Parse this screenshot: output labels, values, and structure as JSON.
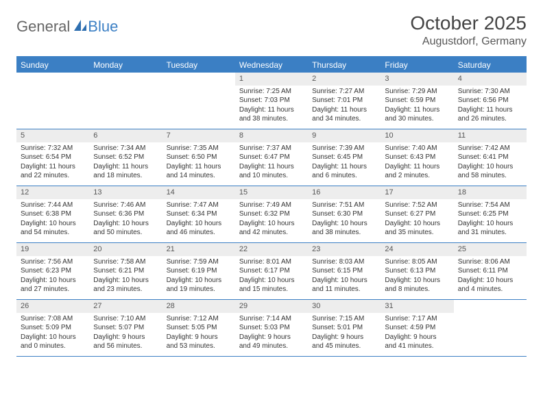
{
  "logo": {
    "part1": "General",
    "part2": "Blue"
  },
  "title": "October 2025",
  "location": "Augustdorf, Germany",
  "colors": {
    "accent": "#3b7fc4",
    "header_bg": "#3b7fc4",
    "daynum_bg": "#ededed",
    "text": "#333333",
    "title_text": "#444444"
  },
  "weekdays": [
    "Sunday",
    "Monday",
    "Tuesday",
    "Wednesday",
    "Thursday",
    "Friday",
    "Saturday"
  ],
  "weeks": [
    [
      {
        "n": "",
        "sr": "",
        "ss": "",
        "dl": ""
      },
      {
        "n": "",
        "sr": "",
        "ss": "",
        "dl": ""
      },
      {
        "n": "",
        "sr": "",
        "ss": "",
        "dl": ""
      },
      {
        "n": "1",
        "sr": "Sunrise: 7:25 AM",
        "ss": "Sunset: 7:03 PM",
        "dl": "Daylight: 11 hours and 38 minutes."
      },
      {
        "n": "2",
        "sr": "Sunrise: 7:27 AM",
        "ss": "Sunset: 7:01 PM",
        "dl": "Daylight: 11 hours and 34 minutes."
      },
      {
        "n": "3",
        "sr": "Sunrise: 7:29 AM",
        "ss": "Sunset: 6:59 PM",
        "dl": "Daylight: 11 hours and 30 minutes."
      },
      {
        "n": "4",
        "sr": "Sunrise: 7:30 AM",
        "ss": "Sunset: 6:56 PM",
        "dl": "Daylight: 11 hours and 26 minutes."
      }
    ],
    [
      {
        "n": "5",
        "sr": "Sunrise: 7:32 AM",
        "ss": "Sunset: 6:54 PM",
        "dl": "Daylight: 11 hours and 22 minutes."
      },
      {
        "n": "6",
        "sr": "Sunrise: 7:34 AM",
        "ss": "Sunset: 6:52 PM",
        "dl": "Daylight: 11 hours and 18 minutes."
      },
      {
        "n": "7",
        "sr": "Sunrise: 7:35 AM",
        "ss": "Sunset: 6:50 PM",
        "dl": "Daylight: 11 hours and 14 minutes."
      },
      {
        "n": "8",
        "sr": "Sunrise: 7:37 AM",
        "ss": "Sunset: 6:47 PM",
        "dl": "Daylight: 11 hours and 10 minutes."
      },
      {
        "n": "9",
        "sr": "Sunrise: 7:39 AM",
        "ss": "Sunset: 6:45 PM",
        "dl": "Daylight: 11 hours and 6 minutes."
      },
      {
        "n": "10",
        "sr": "Sunrise: 7:40 AM",
        "ss": "Sunset: 6:43 PM",
        "dl": "Daylight: 11 hours and 2 minutes."
      },
      {
        "n": "11",
        "sr": "Sunrise: 7:42 AM",
        "ss": "Sunset: 6:41 PM",
        "dl": "Daylight: 10 hours and 58 minutes."
      }
    ],
    [
      {
        "n": "12",
        "sr": "Sunrise: 7:44 AM",
        "ss": "Sunset: 6:38 PM",
        "dl": "Daylight: 10 hours and 54 minutes."
      },
      {
        "n": "13",
        "sr": "Sunrise: 7:46 AM",
        "ss": "Sunset: 6:36 PM",
        "dl": "Daylight: 10 hours and 50 minutes."
      },
      {
        "n": "14",
        "sr": "Sunrise: 7:47 AM",
        "ss": "Sunset: 6:34 PM",
        "dl": "Daylight: 10 hours and 46 minutes."
      },
      {
        "n": "15",
        "sr": "Sunrise: 7:49 AM",
        "ss": "Sunset: 6:32 PM",
        "dl": "Daylight: 10 hours and 42 minutes."
      },
      {
        "n": "16",
        "sr": "Sunrise: 7:51 AM",
        "ss": "Sunset: 6:30 PM",
        "dl": "Daylight: 10 hours and 38 minutes."
      },
      {
        "n": "17",
        "sr": "Sunrise: 7:52 AM",
        "ss": "Sunset: 6:27 PM",
        "dl": "Daylight: 10 hours and 35 minutes."
      },
      {
        "n": "18",
        "sr": "Sunrise: 7:54 AM",
        "ss": "Sunset: 6:25 PM",
        "dl": "Daylight: 10 hours and 31 minutes."
      }
    ],
    [
      {
        "n": "19",
        "sr": "Sunrise: 7:56 AM",
        "ss": "Sunset: 6:23 PM",
        "dl": "Daylight: 10 hours and 27 minutes."
      },
      {
        "n": "20",
        "sr": "Sunrise: 7:58 AM",
        "ss": "Sunset: 6:21 PM",
        "dl": "Daylight: 10 hours and 23 minutes."
      },
      {
        "n": "21",
        "sr": "Sunrise: 7:59 AM",
        "ss": "Sunset: 6:19 PM",
        "dl": "Daylight: 10 hours and 19 minutes."
      },
      {
        "n": "22",
        "sr": "Sunrise: 8:01 AM",
        "ss": "Sunset: 6:17 PM",
        "dl": "Daylight: 10 hours and 15 minutes."
      },
      {
        "n": "23",
        "sr": "Sunrise: 8:03 AM",
        "ss": "Sunset: 6:15 PM",
        "dl": "Daylight: 10 hours and 11 minutes."
      },
      {
        "n": "24",
        "sr": "Sunrise: 8:05 AM",
        "ss": "Sunset: 6:13 PM",
        "dl": "Daylight: 10 hours and 8 minutes."
      },
      {
        "n": "25",
        "sr": "Sunrise: 8:06 AM",
        "ss": "Sunset: 6:11 PM",
        "dl": "Daylight: 10 hours and 4 minutes."
      }
    ],
    [
      {
        "n": "26",
        "sr": "Sunrise: 7:08 AM",
        "ss": "Sunset: 5:09 PM",
        "dl": "Daylight: 10 hours and 0 minutes."
      },
      {
        "n": "27",
        "sr": "Sunrise: 7:10 AM",
        "ss": "Sunset: 5:07 PM",
        "dl": "Daylight: 9 hours and 56 minutes."
      },
      {
        "n": "28",
        "sr": "Sunrise: 7:12 AM",
        "ss": "Sunset: 5:05 PM",
        "dl": "Daylight: 9 hours and 53 minutes."
      },
      {
        "n": "29",
        "sr": "Sunrise: 7:14 AM",
        "ss": "Sunset: 5:03 PM",
        "dl": "Daylight: 9 hours and 49 minutes."
      },
      {
        "n": "30",
        "sr": "Sunrise: 7:15 AM",
        "ss": "Sunset: 5:01 PM",
        "dl": "Daylight: 9 hours and 45 minutes."
      },
      {
        "n": "31",
        "sr": "Sunrise: 7:17 AM",
        "ss": "Sunset: 4:59 PM",
        "dl": "Daylight: 9 hours and 41 minutes."
      },
      {
        "n": "",
        "sr": "",
        "ss": "",
        "dl": ""
      }
    ]
  ]
}
